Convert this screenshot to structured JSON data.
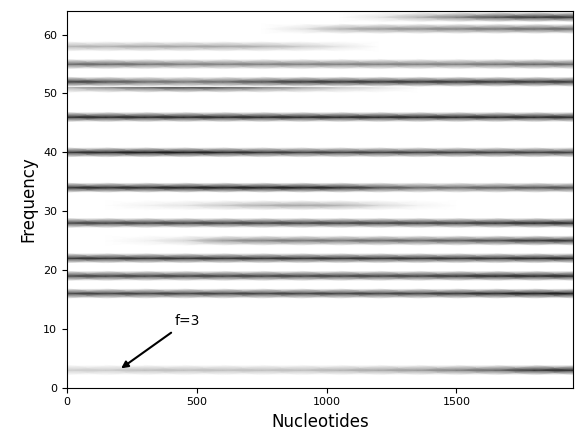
{
  "chart_data": {
    "type": "heatmap",
    "xlabel": "Nucleotides",
    "ylabel": "Frequency",
    "xlim": [
      0,
      1950
    ],
    "xticks": [
      0,
      500,
      1000,
      1500
    ],
    "ylim": [
      0,
      64
    ],
    "yticks": [
      0,
      10,
      20,
      30,
      40,
      50,
      60
    ],
    "grid": false,
    "clim": [
      0,
      1
    ],
    "x": [
      0,
      150,
      300,
      450,
      600,
      750,
      900,
      1050,
      1200,
      1350,
      1500,
      1650,
      1800,
      1950
    ],
    "bands": [
      {
        "frequency": 3,
        "cells": [
          0.2,
          0.2,
          0.25,
          0.25,
          0.25,
          0.25,
          0.25,
          0.3,
          0.35,
          0.4,
          0.5,
          0.6,
          0.8,
          0.85
        ]
      },
      {
        "frequency": 16,
        "cells": [
          0.75,
          0.75,
          0.75,
          0.75,
          0.75,
          0.75,
          0.75,
          0.75,
          0.75,
          0.75,
          0.8,
          0.85,
          0.9,
          0.9
        ]
      },
      {
        "frequency": 19,
        "cells": [
          0.75,
          0.75,
          0.75,
          0.75,
          0.75,
          0.75,
          0.75,
          0.75,
          0.75,
          0.75,
          0.8,
          0.85,
          0.85,
          0.85
        ]
      },
      {
        "frequency": 22,
        "cells": [
          0.8,
          0.8,
          0.8,
          0.8,
          0.8,
          0.8,
          0.8,
          0.8,
          0.8,
          0.8,
          0.8,
          0.8,
          0.85,
          0.85
        ]
      },
      {
        "frequency": 25,
        "cells": [
          0.0,
          0.0,
          0.05,
          0.15,
          0.4,
          0.5,
          0.55,
          0.55,
          0.6,
          0.6,
          0.65,
          0.7,
          0.8,
          0.8
        ]
      },
      {
        "frequency": 28,
        "cells": [
          0.75,
          0.75,
          0.75,
          0.75,
          0.75,
          0.75,
          0.75,
          0.75,
          0.75,
          0.75,
          0.75,
          0.8,
          0.85,
          0.85
        ]
      },
      {
        "frequency": 31,
        "cells": [
          0.0,
          0.0,
          0.05,
          0.1,
          0.2,
          0.3,
          0.35,
          0.3,
          0.15,
          0.05,
          0.0,
          0.0,
          0.0,
          0.0
        ]
      },
      {
        "frequency": 34,
        "cells": [
          0.85,
          0.85,
          0.85,
          0.9,
          0.9,
          0.9,
          0.9,
          0.85,
          0.7,
          0.6,
          0.6,
          0.65,
          0.7,
          0.7
        ]
      },
      {
        "frequency": 40,
        "cells": [
          0.8,
          0.85,
          0.9,
          0.9,
          0.85,
          0.8,
          0.75,
          0.75,
          0.75,
          0.75,
          0.75,
          0.75,
          0.75,
          0.75
        ]
      },
      {
        "frequency": 46,
        "cells": [
          0.85,
          0.85,
          0.85,
          0.85,
          0.85,
          0.85,
          0.85,
          0.85,
          0.85,
          0.85,
          0.85,
          0.85,
          0.85,
          0.85
        ]
      },
      {
        "frequency": 51,
        "cells": [
          0.3,
          0.45,
          0.6,
          0.7,
          0.65,
          0.5,
          0.35,
          0.2,
          0.1,
          0.0,
          0.0,
          0.0,
          0.0,
          0.0
        ]
      },
      {
        "frequency": 52,
        "cells": [
          0.8,
          0.7,
          0.6,
          0.55,
          0.6,
          0.7,
          0.8,
          0.8,
          0.8,
          0.8,
          0.8,
          0.8,
          0.8,
          0.8
        ]
      },
      {
        "frequency": 55,
        "cells": [
          0.6,
          0.6,
          0.55,
          0.5,
          0.5,
          0.5,
          0.5,
          0.5,
          0.5,
          0.5,
          0.5,
          0.55,
          0.6,
          0.6
        ]
      },
      {
        "frequency": 58,
        "cells": [
          0.3,
          0.3,
          0.35,
          0.35,
          0.35,
          0.3,
          0.2,
          0.1,
          0.0,
          0.0,
          0.0,
          0.0,
          0.0,
          0.0
        ]
      },
      {
        "frequency": 61,
        "cells": [
          0.0,
          0.0,
          0.0,
          0.0,
          0.0,
          0.0,
          0.1,
          0.3,
          0.4,
          0.45,
          0.5,
          0.55,
          0.6,
          0.6
        ]
      },
      {
        "frequency": 63,
        "cells": [
          0.0,
          0.0,
          0.0,
          0.0,
          0.0,
          0.0,
          0.0,
          0.0,
          0.1,
          0.3,
          0.5,
          0.7,
          0.8,
          0.8
        ]
      }
    ],
    "annotations": [
      {
        "text": "f=3",
        "x": 200,
        "y": 3
      }
    ]
  }
}
